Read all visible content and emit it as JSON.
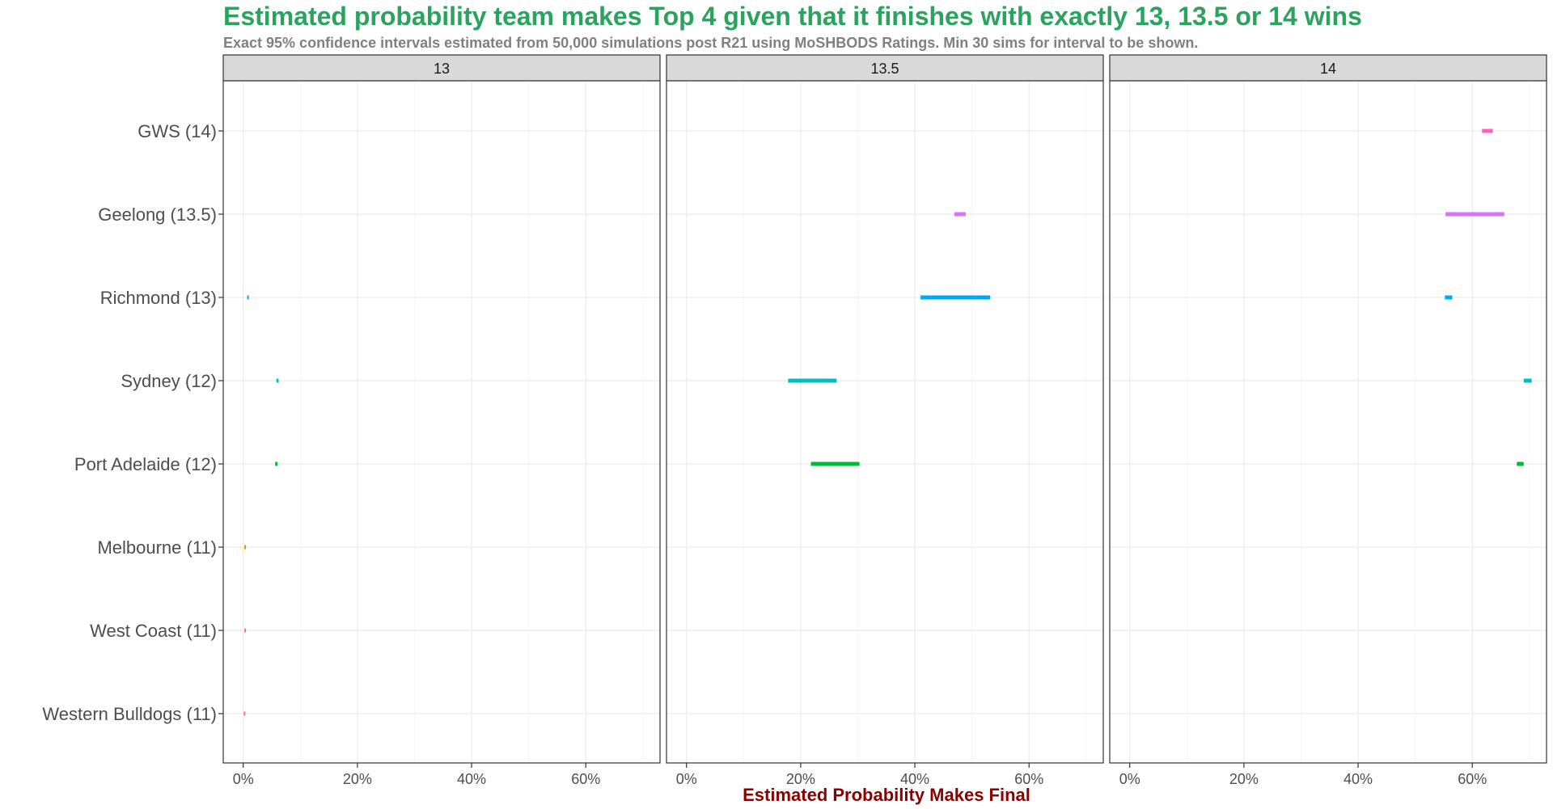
{
  "chart_data": {
    "type": "interval",
    "title": "Estimated probability team makes Top 4 given that it finishes with exactly 13, 13.5 or 14 wins",
    "subtitle": "Exact 95% confidence intervals estimated from 50,000 simulations post R21 using MoSHBODS Ratings. Min 30 sims for interval to be shown.",
    "xlabel": "Estimated Probability Makes Final",
    "xlim": [
      -0.035,
      0.73
    ],
    "x_ticks": [
      0,
      0.2,
      0.4,
      0.6
    ],
    "x_tick_labels": [
      "0%",
      "20%",
      "40%",
      "60%"
    ],
    "grid": true,
    "categories": [
      "GWS (14)",
      "Geelong (13.5)",
      "Richmond (13)",
      "Sydney (12)",
      "Port Adelaide (12)",
      "Melbourne (11)",
      "West Coast (11)",
      "Western Bulldogs (11)"
    ],
    "colors": {
      "GWS (14)": "#FF61C3",
      "Geelong (13.5)": "#DB72FB",
      "Richmond (13)": "#00A9FF",
      "Sydney (12)": "#00BFC4",
      "Port Adelaide (12)": "#00BA38",
      "Melbourne (11)": "#D39200",
      "West Coast (11)": "#F8766D",
      "Western Bulldogs (11)": "#F8766D"
    },
    "facets": [
      {
        "label": "13",
        "intervals": [
          {
            "team": "Richmond (13)",
            "low": 0.007,
            "high": 0.009
          },
          {
            "team": "Sydney (12)",
            "low": 0.058,
            "high": 0.062
          },
          {
            "team": "Port Adelaide (12)",
            "low": 0.056,
            "high": 0.06
          },
          {
            "team": "Melbourne (11)",
            "low": 0.002,
            "high": 0.003
          },
          {
            "team": "West Coast (11)",
            "low": 0.002,
            "high": 0.003
          },
          {
            "team": "Western Bulldogs (11)",
            "low": 0.001,
            "high": 0.002
          }
        ]
      },
      {
        "label": "13.5",
        "intervals": [
          {
            "team": "Geelong (13.5)",
            "low": 0.469,
            "high": 0.489
          },
          {
            "team": "Richmond (13)",
            "low": 0.41,
            "high": 0.532
          },
          {
            "team": "Sydney (12)",
            "low": 0.178,
            "high": 0.263
          },
          {
            "team": "Port Adelaide (12)",
            "low": 0.218,
            "high": 0.303
          }
        ]
      },
      {
        "label": "14",
        "intervals": [
          {
            "team": "GWS (14)",
            "low": 0.617,
            "high": 0.636
          },
          {
            "team": "Geelong (13.5)",
            "low": 0.553,
            "high": 0.656
          },
          {
            "team": "Richmond (13)",
            "low": 0.552,
            "high": 0.565
          },
          {
            "team": "Sydney (12)",
            "low": 0.69,
            "high": 0.704
          },
          {
            "team": "Port Adelaide (12)",
            "low": 0.678,
            "high": 0.69
          }
        ]
      }
    ]
  }
}
